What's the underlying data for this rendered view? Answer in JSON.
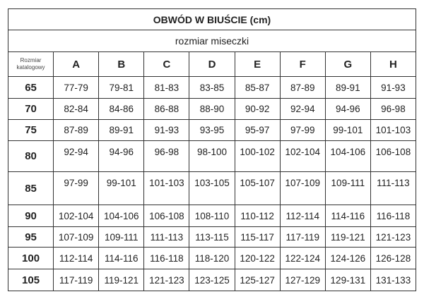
{
  "title": "OBWÓD W BIUŚCIE (cm)",
  "subtitle": "rozmiar miseczki",
  "corner_label_line1": "Rozmiar",
  "corner_label_line2": "katalogowy",
  "cups": [
    "A",
    "B",
    "C",
    "D",
    "E",
    "F",
    "G",
    "H"
  ],
  "rows": [
    {
      "size": "65",
      "values": [
        "77-79",
        "79-81",
        "81-83",
        "83-85",
        "85-87",
        "87-89",
        "89-91",
        "91-93"
      ]
    },
    {
      "size": "70",
      "values": [
        "82-84",
        "84-86",
        "86-88",
        "88-90",
        "90-92",
        "92-94",
        "94-96",
        "96-98"
      ]
    },
    {
      "size": "75",
      "values": [
        "87-89",
        "89-91",
        "91-93",
        "93-95",
        "95-97",
        "97-99",
        "99-101",
        "101-103"
      ]
    },
    {
      "size": "80",
      "values": [
        "92-94",
        "94-96",
        "96-98",
        "98-100",
        "100-102",
        "102-104",
        "104-106",
        "106-108"
      ]
    },
    {
      "size": "85",
      "values": [
        "97-99",
        "99-101",
        "101-103",
        "103-105",
        "105-107",
        "107-109",
        "109-111",
        "111-113"
      ]
    },
    {
      "size": "90",
      "values": [
        "102-104",
        "104-106",
        "106-108",
        "108-110",
        "110-112",
        "112-114",
        "114-116",
        "116-118"
      ]
    },
    {
      "size": "95",
      "values": [
        "107-109",
        "109-111",
        "111-113",
        "113-115",
        "115-117",
        "117-119",
        "119-121",
        "121-123"
      ]
    },
    {
      "size": "100",
      "values": [
        "112-114",
        "114-116",
        "116-118",
        "118-120",
        "120-122",
        "122-124",
        "124-126",
        "126-128"
      ]
    },
    {
      "size": "105",
      "values": [
        "117-119",
        "119-121",
        "121-123",
        "123-125",
        "125-127",
        "127-129",
        "129-131",
        "131-133"
      ]
    }
  ]
}
